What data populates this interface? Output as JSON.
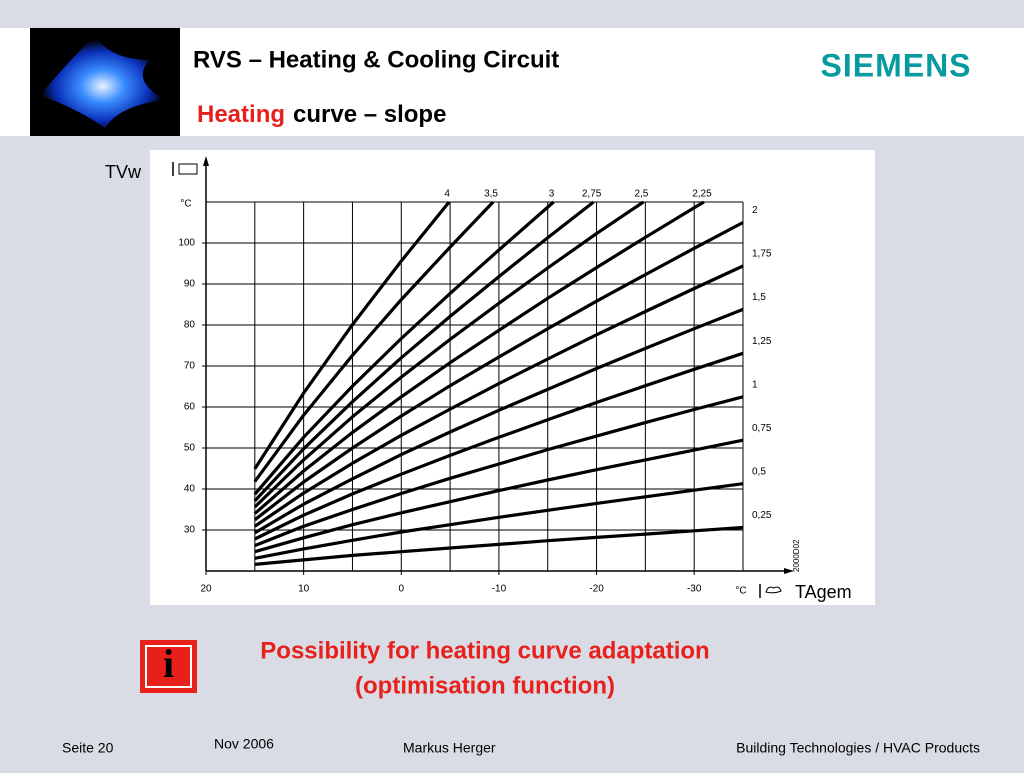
{
  "header": {
    "title": "RVS – Heating & Cooling Circuit",
    "subtitle_highlight": "Heating",
    "subtitle_rest": "curve – slope",
    "logo": "SIEMENS"
  },
  "chart_data": {
    "type": "line",
    "y_title": "TVw",
    "x_title": "TAgem",
    "y_unit": "°C",
    "x_unit": "°C",
    "code": "2000D02",
    "xlim": [
      20,
      -35
    ],
    "ylim": [
      20,
      110
    ],
    "xticks": [
      20,
      10,
      0,
      -10,
      -20,
      -30
    ],
    "yticks": [
      30,
      40,
      50,
      60,
      70,
      80,
      90,
      100
    ],
    "x_minor_grid": [
      15,
      5,
      -5,
      -15,
      -25,
      -35
    ],
    "grid": true,
    "color": "#000000",
    "series": [
      {
        "name": "4",
        "x": [
          15,
          10,
          5,
          0,
          -4.9
        ],
        "values": [
          44.9,
          63.4,
          80.1,
          95.6,
          110
        ]
      },
      {
        "name": "3,5",
        "x": [
          15,
          10,
          5,
          0,
          -5,
          -9.4
        ],
        "values": [
          41.8,
          58.0,
          72.6,
          86.2,
          99.0,
          110
        ]
      },
      {
        "name": "3",
        "x": [
          15,
          10,
          5,
          0,
          -5,
          -10,
          -15.6
        ],
        "values": [
          38.7,
          52.6,
          65.1,
          76.7,
          87.7,
          98.3,
          110
        ]
      },
      {
        "name": "2,75",
        "x": [
          15,
          10,
          5,
          0,
          -5,
          -10,
          -15,
          -19.7
        ],
        "values": [
          37.1,
          49.8,
          61.3,
          72.0,
          82.1,
          91.8,
          101.3,
          110
        ]
      },
      {
        "name": "2,5",
        "x": [
          15,
          10,
          5,
          0,
          -5,
          -10,
          -15,
          -20,
          -24.8
        ],
        "values": [
          35.6,
          47.1,
          57.6,
          67.3,
          76.5,
          85.3,
          93.9,
          102.3,
          110
        ]
      },
      {
        "name": "2,25",
        "x": [
          15,
          10,
          5,
          0,
          -5,
          -10,
          -15,
          -20,
          -25,
          -30,
          -31
        ],
        "values": [
          34.0,
          44.4,
          53.8,
          62.5,
          70.8,
          78.7,
          86.5,
          94.0,
          101.4,
          108.6,
          110
        ]
      },
      {
        "name": "2",
        "x": [
          15,
          10,
          5,
          0,
          -5,
          -10,
          -15,
          -20,
          -25,
          -30,
          -35
        ],
        "values": [
          32.5,
          41.7,
          50.0,
          57.8,
          65.2,
          72.2,
          79.1,
          85.8,
          92.3,
          98.7,
          105.0
        ]
      },
      {
        "name": "1,75",
        "x": [
          15,
          10,
          5,
          0,
          -5,
          -10,
          -15,
          -20,
          -25,
          -30,
          -35
        ],
        "values": [
          30.9,
          39.0,
          46.3,
          53.1,
          59.5,
          65.7,
          71.7,
          77.6,
          83.3,
          88.9,
          94.4
        ]
      },
      {
        "name": "1,5",
        "x": [
          15,
          10,
          5,
          0,
          -5,
          -10,
          -15,
          -20,
          -25,
          -30,
          -35
        ],
        "values": [
          29.3,
          36.3,
          42.5,
          48.4,
          53.9,
          59.2,
          64.3,
          69.4,
          74.3,
          79.1,
          83.8
        ]
      },
      {
        "name": "1,25",
        "x": [
          15,
          10,
          5,
          0,
          -5,
          -10,
          -15,
          -20,
          -25,
          -30,
          -35
        ],
        "values": [
          27.8,
          33.6,
          38.8,
          43.6,
          48.2,
          52.6,
          56.9,
          61.1,
          65.2,
          69.2,
          73.1
        ]
      },
      {
        "name": "1",
        "x": [
          15,
          10,
          5,
          0,
          -5,
          -10,
          -15,
          -20,
          -25,
          -30,
          -35
        ],
        "values": [
          26.2,
          30.9,
          35.0,
          38.9,
          42.6,
          46.1,
          49.6,
          52.9,
          56.2,
          59.4,
          62.5
        ]
      },
      {
        "name": "0,75",
        "x": [
          15,
          10,
          5,
          0,
          -5,
          -10,
          -15,
          -20,
          -25,
          -30,
          -35
        ],
        "values": [
          24.7,
          28.1,
          31.3,
          34.2,
          36.9,
          39.6,
          42.2,
          44.7,
          47.1,
          49.5,
          51.9
        ]
      },
      {
        "name": "0,5",
        "x": [
          15,
          10,
          5,
          0,
          -5,
          -10,
          -15,
          -20,
          -25,
          -30,
          -35
        ],
        "values": [
          23.1,
          25.4,
          27.5,
          29.5,
          31.3,
          33.1,
          34.8,
          36.5,
          38.1,
          39.7,
          41.3
        ]
      },
      {
        "name": "0,25",
        "x": [
          15,
          10,
          5,
          0,
          -5,
          -10,
          -15,
          -20,
          -25,
          -30,
          -35
        ],
        "values": [
          21.6,
          22.7,
          23.8,
          24.7,
          25.6,
          26.5,
          27.4,
          28.2,
          29.0,
          29.8,
          30.6
        ]
      }
    ]
  },
  "note": {
    "icon": "i",
    "line1": "Possibility for heating curve adaptation",
    "line2": "(optimisation function)"
  },
  "footer": {
    "page": "Seite 20",
    "date": "Nov 2006",
    "author": "Markus Herger",
    "company": "Building Technologies / HVAC Products"
  }
}
